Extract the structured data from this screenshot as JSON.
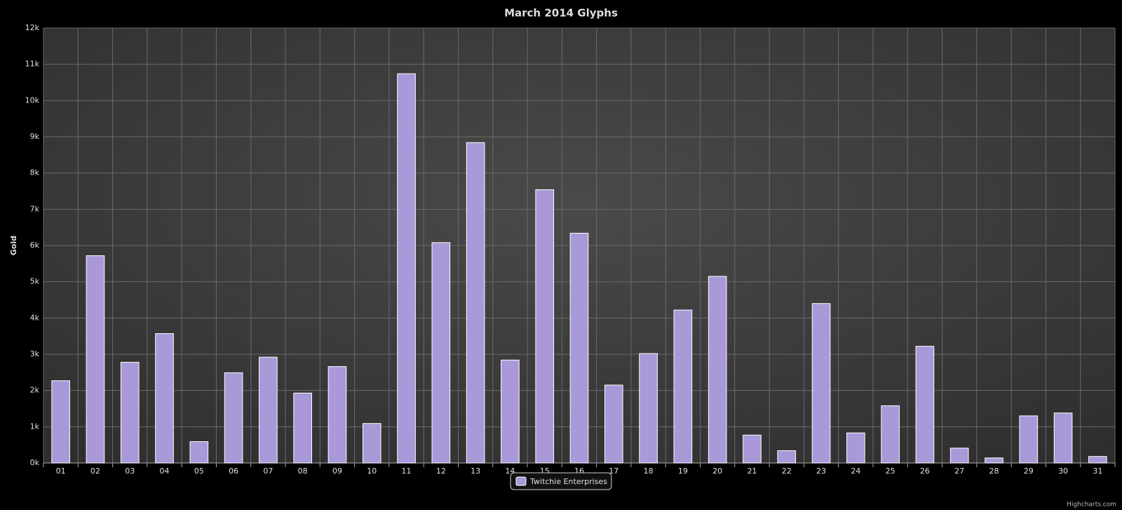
{
  "chart_data": {
    "type": "bar",
    "title": "March 2014 Glyphs",
    "y_axis_label": "Gold",
    "categories": [
      "01",
      "02",
      "03",
      "04",
      "05",
      "06",
      "07",
      "08",
      "09",
      "10",
      "11",
      "12",
      "13",
      "14",
      "15",
      "16",
      "17",
      "18",
      "19",
      "20",
      "21",
      "22",
      "23",
      "24",
      "25",
      "26",
      "27",
      "28",
      "29",
      "30",
      "31"
    ],
    "series": [
      {
        "name": "Twitchie Enterprises",
        "color": "#a999d8",
        "values": [
          2270,
          5720,
          2780,
          3570,
          590,
          2490,
          2920,
          1930,
          2660,
          1090,
          10740,
          6080,
          8840,
          2840,
          7540,
          6340,
          2150,
          3020,
          4220,
          5150,
          770,
          340,
          4400,
          830,
          1580,
          3220,
          410,
          140,
          1300,
          1380,
          180
        ]
      }
    ],
    "ylim": [
      0,
      12000
    ],
    "yticks": [
      {
        "value": 0,
        "label": "0k"
      },
      {
        "value": 1000,
        "label": "1k"
      },
      {
        "value": 2000,
        "label": "2k"
      },
      {
        "value": 3000,
        "label": "3k"
      },
      {
        "value": 4000,
        "label": "4k"
      },
      {
        "value": 5000,
        "label": "5k"
      },
      {
        "value": 6000,
        "label": "6k"
      },
      {
        "value": 7000,
        "label": "7k"
      },
      {
        "value": 8000,
        "label": "8k"
      },
      {
        "value": 9000,
        "label": "9k"
      },
      {
        "value": 10000,
        "label": "10k"
      },
      {
        "value": 11000,
        "label": "11k"
      },
      {
        "value": 12000,
        "label": "12k"
      }
    ],
    "grid": true,
    "legend_position": "bottom",
    "credits": "Highcharts.com"
  }
}
